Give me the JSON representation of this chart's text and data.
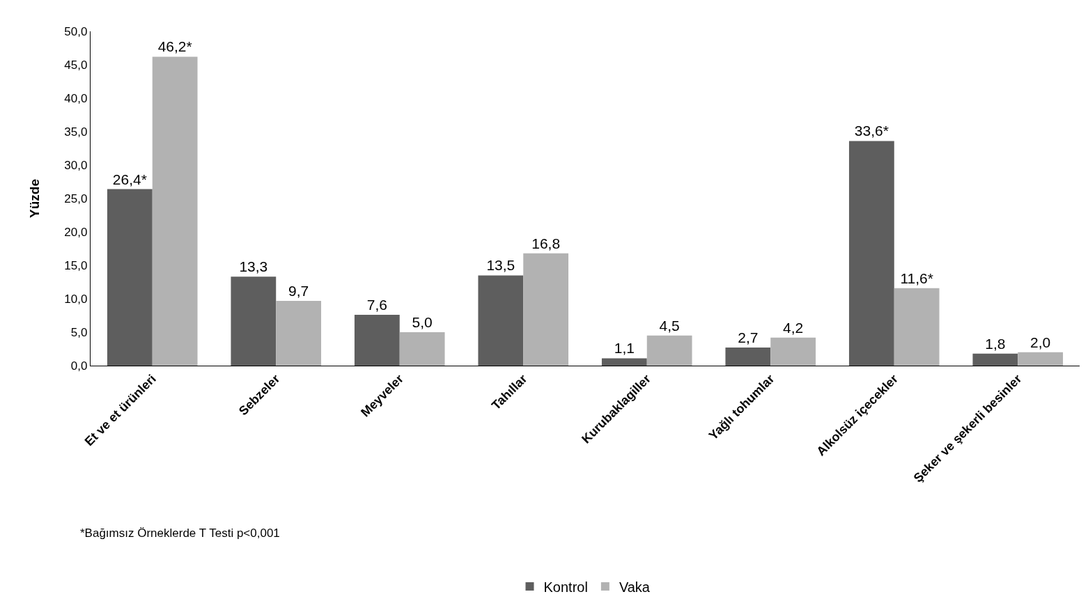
{
  "chart_data": {
    "type": "bar",
    "ylabel": "Yüzde",
    "categories": [
      "Et ve et ürünleri",
      "Sebzeler",
      "Meyveler",
      "Tahıllar",
      "Kurubaklagiller",
      "Yağlı tohumlar",
      "Alkolsüz içecekler",
      "Şeker ve şekerli besinler"
    ],
    "series": [
      {
        "name": "Kontrol",
        "color": "#5e5e5e",
        "values": [
          26.4,
          13.3,
          7.6,
          13.5,
          1.1,
          2.7,
          33.6,
          1.8
        ],
        "value_labels": [
          "26,4*",
          "13,3",
          "7,6",
          "13,5",
          "1,1",
          "2,7",
          "33,6*",
          "1,8"
        ]
      },
      {
        "name": "Vaka",
        "color": "#b2b2b2",
        "values": [
          46.2,
          9.7,
          5.0,
          16.8,
          4.5,
          4.2,
          11.6,
          2.0
        ],
        "value_labels": [
          "46,2*",
          "9,7",
          "5,0",
          "16,8",
          "4,5",
          "4,2",
          "11,6*",
          "2,0"
        ]
      }
    ],
    "ylim": [
      0,
      50
    ],
    "yticks": [
      {
        "value": 0,
        "label": "0,0"
      },
      {
        "value": 5,
        "label": "5,0"
      },
      {
        "value": 10,
        "label": "10,0"
      },
      {
        "value": 15,
        "label": "15,0"
      },
      {
        "value": 20,
        "label": "20,0"
      },
      {
        "value": 25,
        "label": "25,0"
      },
      {
        "value": 30,
        "label": "30,0"
      },
      {
        "value": 35,
        "label": "35,0"
      },
      {
        "value": 40,
        "label": "40,0"
      },
      {
        "value": 45,
        "label": "45,0"
      },
      {
        "value": 50,
        "label": "50,0"
      }
    ],
    "grid": false,
    "legend": "bottom",
    "annotations": [
      "*Bağımsız Örneklerde T Testi p<0,001"
    ]
  }
}
